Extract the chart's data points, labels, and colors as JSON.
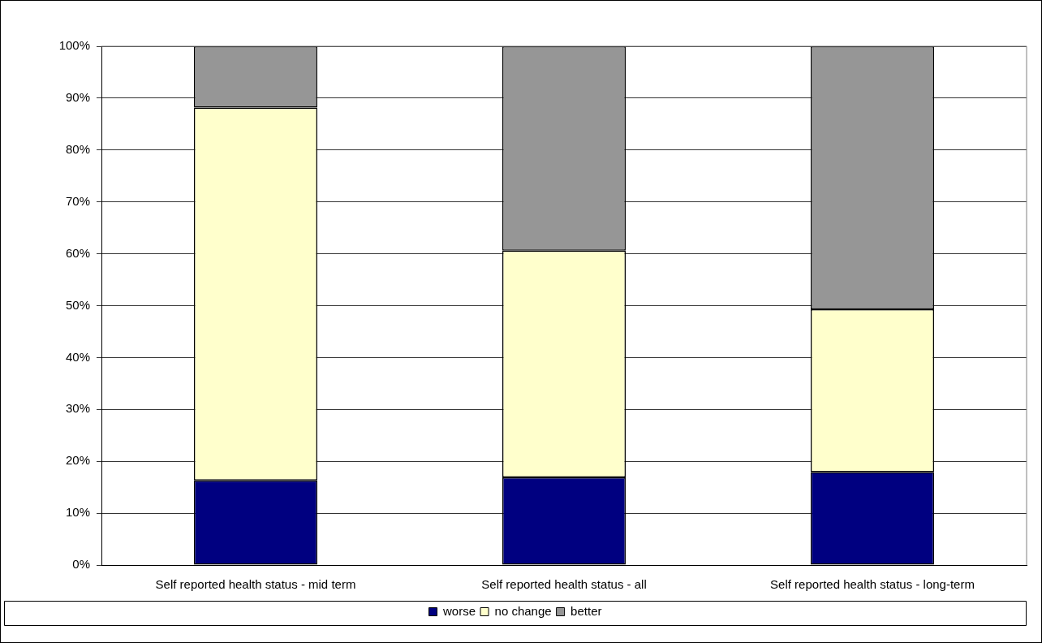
{
  "chart_data": {
    "type": "bar",
    "stacked": true,
    "categories": [
      "Self reported health status - mid term",
      "Self reported health status - all",
      "Self reported health status - long-term"
    ],
    "series": [
      {
        "name": "worse",
        "color": "#000080",
        "values": [
          16.3,
          16.9,
          17.9
        ]
      },
      {
        "name": "no change",
        "color": "#ffffcc",
        "values": [
          71.9,
          43.7,
          31.4
        ]
      },
      {
        "name": "better",
        "color": "#969696",
        "values": [
          11.8,
          39.4,
          50.7
        ]
      }
    ],
    "ylim": [
      0,
      100
    ],
    "yticks": [
      {
        "value": 0,
        "label": "0%"
      },
      {
        "value": 10,
        "label": "10%"
      },
      {
        "value": 20,
        "label": "20%"
      },
      {
        "value": 30,
        "label": "30%"
      },
      {
        "value": 40,
        "label": "40%"
      },
      {
        "value": 50,
        "label": "50%"
      },
      {
        "value": 60,
        "label": "60%"
      },
      {
        "value": 70,
        "label": "70%"
      },
      {
        "value": 80,
        "label": "80%"
      },
      {
        "value": 90,
        "label": "90%"
      },
      {
        "value": 100,
        "label": "100%"
      }
    ],
    "grid": "y",
    "legend": "bottom"
  }
}
